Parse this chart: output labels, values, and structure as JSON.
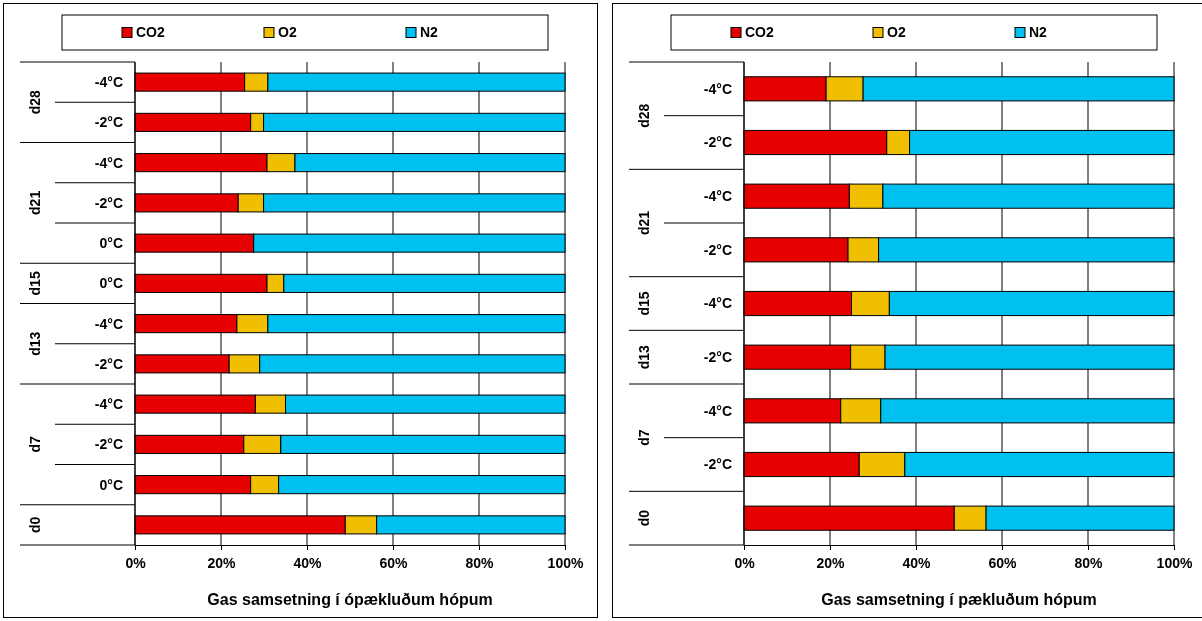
{
  "chart_data": [
    {
      "type": "bar",
      "orientation": "horizontal",
      "stacked": true,
      "xlabel": "Gas samsetning í ópækluðum hópum",
      "legend": "top",
      "grid": "x",
      "categories": [
        "-4°C",
        "-2°C",
        "-4°C",
        "-2°C",
        "0°C",
        "0°C",
        "-4°C",
        "-2°C",
        "-4°C",
        "-2°C",
        "0°C",
        null
      ],
      "y_categories": [
        "d28",
        null,
        "d21",
        null,
        null,
        "d15",
        "d13",
        null,
        "d7",
        null,
        null,
        "d0"
      ],
      "xlim": [
        0,
        100
      ],
      "xticks": [
        {
          "value": 0,
          "label": "0%"
        },
        {
          "value": 20,
          "label": "20%"
        },
        {
          "value": 40,
          "label": "40%"
        },
        {
          "value": 60,
          "label": "60%"
        },
        {
          "value": 80,
          "label": "80%"
        },
        {
          "value": 100,
          "label": "100%"
        }
      ],
      "series": [
        {
          "name": "CO2",
          "color": "#e60000",
          "values": [
            25.5,
            26.9,
            30.7,
            24.0,
            27.6,
            30.7,
            23.7,
            21.9,
            28.0,
            25.3,
            26.9,
            48.9
          ]
        },
        {
          "name": "O2",
          "color": "#f0c000",
          "values": [
            5.4,
            3.0,
            6.5,
            5.9,
            0,
            3.9,
            7.2,
            7.1,
            7.0,
            8.6,
            6.5,
            7.3
          ]
        },
        {
          "name": "N2",
          "color": "#00c0f0",
          "values": [
            69.1,
            70.1,
            62.8,
            70.1,
            72.4,
            65.4,
            69.1,
            71.0,
            65.0,
            66.1,
            66.6,
            43.8
          ]
        }
      ]
    },
    {
      "type": "bar",
      "orientation": "horizontal",
      "stacked": true,
      "xlabel": "Gas samsetning í pækluðum hópum",
      "legend": "top",
      "grid": "x",
      "categories": [
        "-4°C",
        "-2°C",
        "-4°C",
        "-2°C",
        "-4°C",
        "-2°C",
        "-4°C",
        "-2°C",
        null
      ],
      "y_categories": [
        "d28",
        null,
        "d21",
        null,
        "d15",
        "d13",
        "d7",
        null,
        "d0"
      ],
      "xlim": [
        0,
        100
      ],
      "xticks": [
        {
          "value": 0,
          "label": "0%"
        },
        {
          "value": 20,
          "label": "20%"
        },
        {
          "value": 40,
          "label": "40%"
        },
        {
          "value": 60,
          "label": "60%"
        },
        {
          "value": 80,
          "label": "80%"
        },
        {
          "value": 100,
          "label": "100%"
        }
      ],
      "series": [
        {
          "name": "CO2",
          "color": "#e60000",
          "values": [
            19.1,
            33.2,
            24.5,
            24.2,
            25.0,
            24.8,
            22.5,
            26.8,
            48.9
          ]
        },
        {
          "name": "O2",
          "color": "#f0c000",
          "values": [
            8.6,
            5.3,
            7.8,
            7.1,
            8.8,
            8.0,
            9.3,
            10.6,
            7.4
          ]
        },
        {
          "name": "N2",
          "color": "#00c0f0",
          "values": [
            72.3,
            61.5,
            67.7,
            68.7,
            66.2,
            67.2,
            68.2,
            62.6,
            43.7
          ]
        }
      ]
    }
  ]
}
